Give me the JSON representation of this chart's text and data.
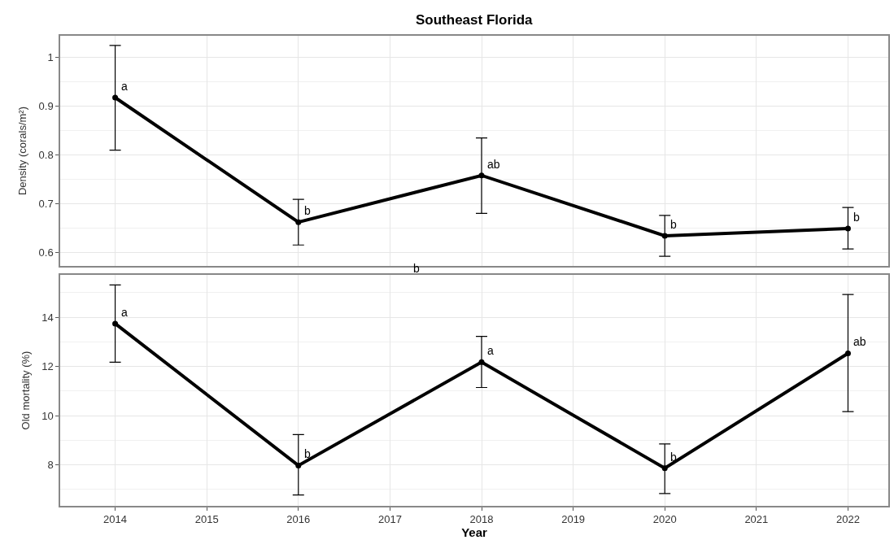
{
  "chart_data": [
    {
      "type": "line",
      "title": "Southeast Florida",
      "ylabel": "Density (corals/m²)",
      "x": [
        2014,
        2016,
        2018,
        2020,
        2022
      ],
      "series": [
        {
          "color": "#000000",
          "values": [
            0.918,
            0.662,
            0.758,
            0.634,
            0.649
          ],
          "errors": [
            [
              0.81,
              1.025
            ],
            [
              0.615,
              0.709
            ],
            [
              0.68,
              0.835
            ],
            [
              0.592,
              0.676
            ],
            [
              0.607,
              0.692
            ]
          ]
        }
      ],
      "xlim": [
        2013.4,
        2022.44
      ],
      "xticks": [
        2014,
        2015,
        2016,
        2017,
        2018,
        2019,
        2020,
        2021,
        2022
      ],
      "ylim": [
        0.572,
        1.045
      ],
      "yticks": [
        0.6,
        0.7,
        0.8,
        0.9,
        1.0
      ],
      "tick_labels": "y",
      "grid": true,
      "marker": "circle",
      "line_style": "solid",
      "annotations": [
        {
          "text": "a",
          "x": 2014,
          "y": 0.918
        },
        {
          "text": "b",
          "x": 2016,
          "y": 0.662
        },
        {
          "text": "ab",
          "x": 2018,
          "y": 0.758
        },
        {
          "text": "b",
          "x": 2020,
          "y": 0.634
        },
        {
          "text": "b",
          "x": 2022,
          "y": 0.649
        }
      ]
    },
    {
      "type": "line",
      "xlabel": "Year",
      "ylabel": "Old mortality (%)",
      "x": [
        2014,
        2016,
        2018,
        2020,
        2022
      ],
      "series": [
        {
          "color": "#000000",
          "values": [
            13.74,
            7.97,
            12.17,
            7.86,
            12.53
          ],
          "errors": [
            [
              12.17,
              15.31
            ],
            [
              6.77,
              9.23
            ],
            [
              11.14,
              13.22
            ],
            [
              6.83,
              8.85
            ],
            [
              10.16,
              14.92
            ]
          ]
        }
      ],
      "xlim": [
        2013.4,
        2022.44
      ],
      "xticks": [
        2014,
        2015,
        2016,
        2017,
        2018,
        2019,
        2020,
        2021,
        2022
      ],
      "ylim": [
        6.33,
        15.72
      ],
      "yticks": [
        8,
        10,
        12,
        14
      ],
      "grid": true,
      "marker": "circle",
      "line_style": "solid",
      "annotations": [
        "b",
        {
          "text": "a",
          "x": 2014,
          "y": 13.74
        },
        {
          "text": "b",
          "x": 2016,
          "y": 7.97
        },
        {
          "text": "a",
          "x": 2018,
          "y": 12.17
        },
        {
          "text": "b",
          "x": 2020,
          "y": 7.86
        },
        {
          "text": "ab",
          "x": 2022,
          "y": 12.53
        }
      ]
    }
  ]
}
